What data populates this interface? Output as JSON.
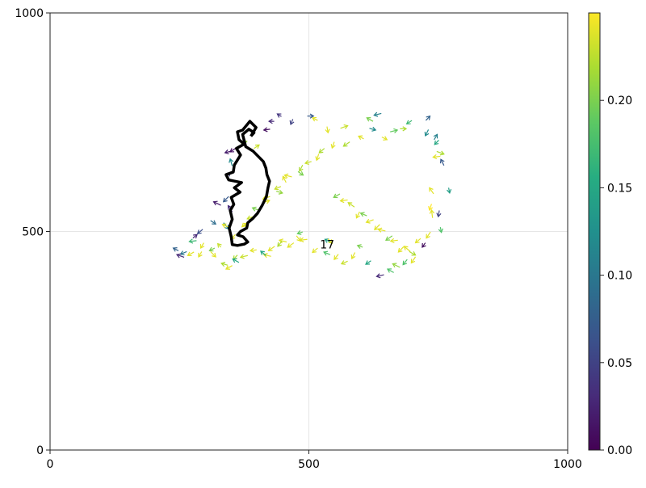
{
  "chart_data": {
    "type": "quiver",
    "title": "",
    "xlabel": "",
    "ylabel": "",
    "xlim": [
      0,
      1000
    ],
    "ylim": [
      0,
      1000
    ],
    "xticks": [
      "0",
      "500",
      "1000"
    ],
    "yticks": [
      "0",
      "500",
      "1000"
    ],
    "grid": true,
    "trajectory_label": "17",
    "colorbar": {
      "colormap": "viridis",
      "range": [
        0.0,
        0.25
      ],
      "ticks": [
        "0.00",
        "0.05",
        "0.10",
        "0.15",
        "0.20"
      ],
      "colors": [
        "#440154",
        "#472c7a",
        "#3b518b",
        "#2c718e",
        "#21908d",
        "#27ad81",
        "#5cc863",
        "#aadc32",
        "#fde725"
      ]
    },
    "trajectory": [
      [
        388,
        718
      ],
      [
        398,
        738
      ],
      [
        386,
        752
      ],
      [
        372,
        732
      ],
      [
        362,
        728
      ],
      [
        365,
        710
      ],
      [
        375,
        700
      ],
      [
        360,
        690
      ],
      [
        368,
        675
      ],
      [
        356,
        652
      ],
      [
        354,
        636
      ],
      [
        340,
        630
      ],
      [
        345,
        618
      ],
      [
        370,
        612
      ],
      [
        356,
        600
      ],
      [
        367,
        590
      ],
      [
        350,
        578
      ],
      [
        355,
        562
      ],
      [
        348,
        548
      ],
      [
        352,
        528
      ],
      [
        346,
        508
      ],
      [
        350,
        488
      ],
      [
        352,
        470
      ],
      [
        362,
        468
      ],
      [
        375,
        471
      ],
      [
        382,
        476
      ],
      [
        373,
        488
      ],
      [
        362,
        492
      ],
      [
        368,
        500
      ],
      [
        380,
        508
      ],
      [
        382,
        520
      ],
      [
        392,
        530
      ],
      [
        401,
        542
      ],
      [
        410,
        560
      ],
      [
        418,
        580
      ],
      [
        421,
        600
      ],
      [
        424,
        615
      ],
      [
        419,
        630
      ],
      [
        417,
        645
      ],
      [
        412,
        660
      ],
      [
        402,
        672
      ],
      [
        392,
        684
      ],
      [
        378,
        694
      ],
      [
        375,
        708
      ],
      [
        372,
        722
      ],
      [
        384,
        734
      ],
      [
        394,
        726
      ],
      [
        388,
        718
      ]
    ],
    "arrows": [
      [
        330,
        560,
        -14,
        8,
        0.02
      ],
      [
        345,
        580,
        -10,
        -12,
        0.07
      ],
      [
        352,
        545,
        -8,
        14,
        0.03
      ],
      [
        340,
        625,
        8,
        10,
        0.05
      ],
      [
        352,
        650,
        -4,
        16,
        0.12
      ],
      [
        350,
        684,
        -12,
        -4,
        0.02
      ],
      [
        358,
        690,
        -10,
        -8,
        0.01
      ],
      [
        368,
        702,
        12,
        4,
        0.21
      ],
      [
        394,
        690,
        10,
        8,
        0.23
      ],
      [
        425,
        734,
        -12,
        -2,
        0.01
      ],
      [
        433,
        752,
        -10,
        0,
        0.03
      ],
      [
        447,
        763,
        -8,
        6,
        0.04
      ],
      [
        469,
        757,
        -4,
        -12,
        0.05
      ],
      [
        497,
        764,
        12,
        0,
        0.07
      ],
      [
        517,
        754,
        -10,
        6,
        0.24
      ],
      [
        535,
        740,
        2,
        -14,
        0.24
      ],
      [
        561,
        736,
        14,
        6,
        0.23
      ],
      [
        579,
        705,
        -12,
        -10,
        0.22
      ],
      [
        606,
        712,
        -10,
        6,
        0.24
      ],
      [
        617,
        736,
        12,
        -4,
        0.12
      ],
      [
        640,
        770,
        -14,
        -4,
        0.11
      ],
      [
        624,
        752,
        -12,
        8,
        0.2
      ],
      [
        641,
        716,
        10,
        -6,
        0.24
      ],
      [
        657,
        728,
        14,
        4,
        0.19
      ],
      [
        676,
        735,
        12,
        0,
        0.22
      ],
      [
        699,
        754,
        -10,
        -8,
        0.17
      ],
      [
        726,
        754,
        8,
        10,
        0.08
      ],
      [
        731,
        733,
        -6,
        -14,
        0.12
      ],
      [
        742,
        710,
        6,
        12,
        0.11
      ],
      [
        751,
        709,
        -8,
        -10,
        0.15
      ],
      [
        747,
        683,
        14,
        -6,
        0.22
      ],
      [
        754,
        672,
        -14,
        -2,
        0.24
      ],
      [
        761,
        651,
        -6,
        14,
        0.07
      ],
      [
        770,
        600,
        2,
        -12,
        0.14
      ],
      [
        741,
        586,
        -8,
        14,
        0.24
      ],
      [
        737,
        563,
        -4,
        -14,
        0.25
      ],
      [
        752,
        548,
        -2,
        -14,
        0.05
      ],
      [
        739,
        531,
        -2,
        18,
        0.24
      ],
      [
        754,
        510,
        2,
        -12,
        0.18
      ],
      [
        735,
        499,
        -8,
        -14,
        0.24
      ],
      [
        725,
        474,
        -6,
        -10,
        0.01
      ],
      [
        716,
        484,
        -10,
        -10,
        0.24
      ],
      [
        696,
        454,
        -12,
        12,
        0.24
      ],
      [
        690,
        436,
        -8,
        -12,
        0.18
      ],
      [
        676,
        418,
        -14,
        8,
        0.21
      ],
      [
        664,
        406,
        -12,
        8,
        0.18
      ],
      [
        645,
        401,
        -14,
        -4,
        0.03
      ],
      [
        620,
        433,
        -10,
        -8,
        0.15
      ],
      [
        604,
        464,
        -10,
        4,
        0.2
      ],
      [
        589,
        452,
        -6,
        -14,
        0.24
      ],
      [
        575,
        432,
        -12,
        -6,
        0.23
      ],
      [
        557,
        448,
        -8,
        -12,
        0.24
      ],
      [
        541,
        447,
        -12,
        6,
        0.18
      ],
      [
        545,
        474,
        -14,
        8,
        0.14
      ],
      [
        537,
        483,
        8,
        -10,
        0.24
      ],
      [
        517,
        462,
        -10,
        -10,
        0.24
      ],
      [
        497,
        482,
        -14,
        -2,
        0.24
      ],
      [
        488,
        499,
        -10,
        -4,
        0.19
      ],
      [
        476,
        490,
        8,
        -12,
        0.24
      ],
      [
        471,
        474,
        -12,
        -10,
        0.24
      ],
      [
        457,
        476,
        -14,
        4,
        0.24
      ],
      [
        448,
        478,
        -8,
        -12,
        0.22
      ],
      [
        434,
        466,
        -12,
        -10,
        0.24
      ],
      [
        427,
        443,
        -14,
        4,
        0.24
      ],
      [
        417,
        445,
        -10,
        10,
        0.15
      ],
      [
        399,
        458,
        -12,
        -2,
        0.24
      ],
      [
        382,
        445,
        -14,
        -4,
        0.23
      ],
      [
        362,
        446,
        -8,
        -10,
        0.22
      ],
      [
        365,
        429,
        -12,
        8,
        0.15
      ],
      [
        352,
        422,
        -12,
        -8,
        0.24
      ],
      [
        343,
        423,
        -12,
        4,
        0.22
      ],
      [
        330,
        464,
        -6,
        8,
        0.23
      ],
      [
        318,
        462,
        -10,
        -6,
        0.2
      ],
      [
        310,
        454,
        10,
        -12,
        0.24
      ],
      [
        297,
        474,
        -6,
        -12,
        0.24
      ],
      [
        283,
        479,
        -14,
        -2,
        0.17
      ],
      [
        293,
        454,
        -6,
        -12,
        0.24
      ],
      [
        278,
        453,
        -12,
        -8,
        0.24
      ],
      [
        264,
        454,
        -12,
        -6,
        0.1
      ],
      [
        248,
        456,
        -10,
        6,
        0.08
      ],
      [
        259,
        441,
        -14,
        6,
        0.03
      ],
      [
        276,
        485,
        8,
        8,
        0.03
      ],
      [
        295,
        505,
        -10,
        -10,
        0.06
      ],
      [
        310,
        525,
        10,
        -8,
        0.09
      ],
      [
        335,
        520,
        10,
        -14,
        0.11
      ],
      [
        345,
        510,
        -12,
        6,
        0.24
      ],
      [
        358,
        493,
        -8,
        -10,
        0.24
      ],
      [
        370,
        510,
        12,
        8,
        0.24
      ],
      [
        381,
        521,
        -10,
        -10,
        0.24
      ],
      [
        395,
        535,
        -14,
        -6,
        0.23
      ],
      [
        405,
        548,
        -14,
        6,
        0.2
      ],
      [
        414,
        567,
        10,
        4,
        0.24
      ],
      [
        425,
        580,
        -14,
        -6,
        0.24
      ],
      [
        437,
        592,
        12,
        -4,
        0.21
      ],
      [
        446,
        603,
        -12,
        -6,
        0.23
      ],
      [
        456,
        612,
        -6,
        14,
        0.24
      ],
      [
        467,
        625,
        -14,
        4,
        0.24
      ],
      [
        479,
        637,
        10,
        -8,
        0.2
      ],
      [
        488,
        652,
        -6,
        -14,
        0.22
      ],
      [
        505,
        660,
        -12,
        -4,
        0.23
      ],
      [
        519,
        677,
        -4,
        -14,
        0.24
      ],
      [
        530,
        690,
        -10,
        -10,
        0.22
      ],
      [
        549,
        705,
        -4,
        -14,
        0.24
      ],
      [
        560,
        586,
        -12,
        -8,
        0.2
      ],
      [
        575,
        572,
        -14,
        -2,
        0.24
      ],
      [
        588,
        556,
        -12,
        10,
        0.23
      ],
      [
        598,
        545,
        -6,
        -14,
        0.24
      ],
      [
        612,
        536,
        -12,
        6,
        0.2
      ],
      [
        625,
        527,
        -14,
        -6,
        0.24
      ],
      [
        637,
        516,
        -10,
        -12,
        0.24
      ],
      [
        648,
        501,
        -14,
        4,
        0.24
      ],
      [
        661,
        490,
        -12,
        -10,
        0.2
      ],
      [
        672,
        480,
        -14,
        -2,
        0.24
      ],
      [
        683,
        465,
        -10,
        -12,
        0.24
      ],
      [
        694,
        454,
        12,
        -8,
        0.22
      ],
      [
        706,
        442,
        -8,
        -14,
        0.24
      ]
    ]
  }
}
